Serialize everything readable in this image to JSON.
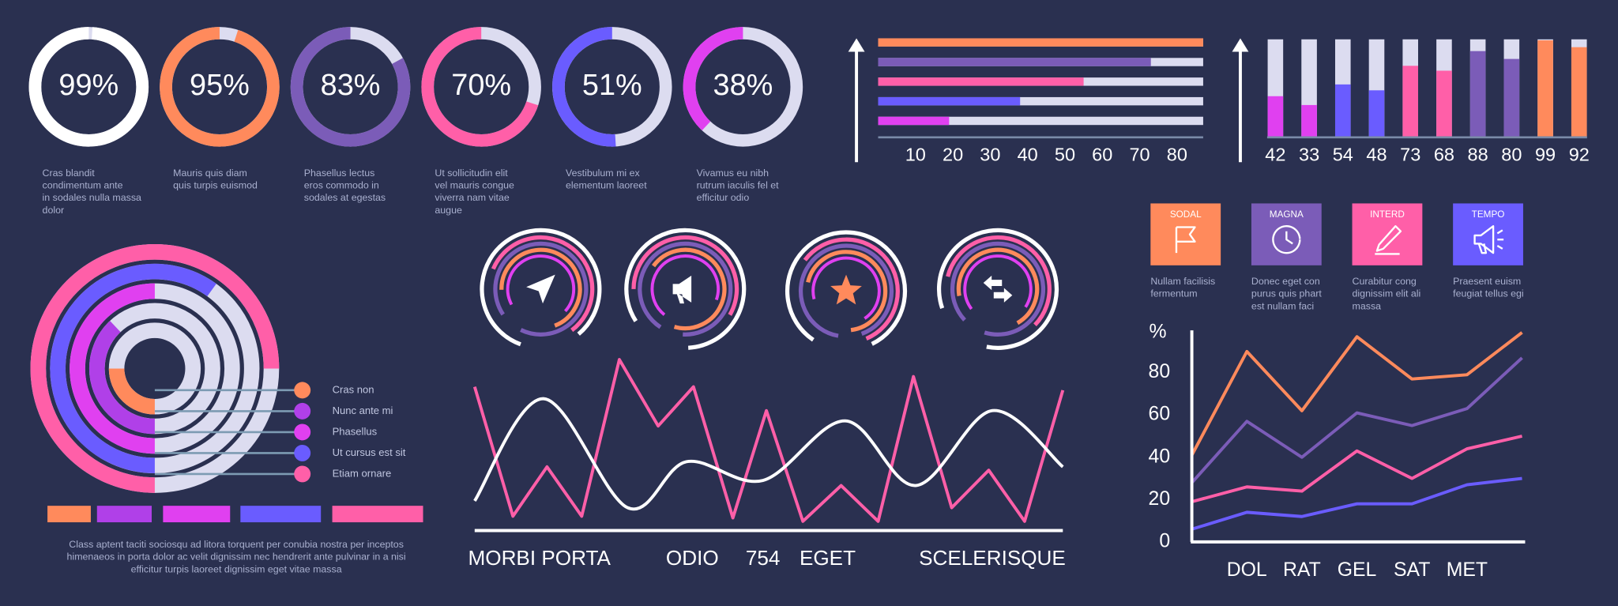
{
  "chart_data": [
    {
      "type": "donut",
      "values": [
        99,
        95,
        83,
        70,
        51,
        38
      ],
      "value_labels": [
        "99%",
        "95%",
        "83%",
        "70%",
        "51%",
        "38%"
      ],
      "colors": [
        "#ffffff",
        "#ff8a5c",
        "#7b5cb8",
        "#ff5fa8",
        "#6a5cff",
        "#e040f0"
      ],
      "track_color": "#dcdcf0",
      "captions": [
        [
          "Cras blandit",
          "condimentum ante",
          "in sodales nulla massa",
          "dolor"
        ],
        [
          "Mauris quis diam",
          "quis turpis euismod"
        ],
        [
          "Phasellus lectus",
          "eros commodo in",
          "sodales at egestas"
        ],
        [
          "Ut sollicitudin elit",
          "vel mauris congue",
          "viverra nam vitae",
          "augue"
        ],
        [
          "Vestibulum mi ex",
          "elementum  laoreet"
        ],
        [
          "Vivamus eu nibh",
          "rutrum iaculis fel et",
          "efficitur odio"
        ]
      ]
    },
    {
      "type": "bar",
      "orientation": "horizontal",
      "values": [
        87,
        73,
        55,
        38,
        19
      ],
      "colors": [
        "#ff8a5c",
        "#7b5cb8",
        "#ff5fa8",
        "#6a5cff",
        "#e040f0"
      ],
      "track_color": "#dcdcf0",
      "xlim": [
        0,
        87
      ],
      "xticks": [
        10,
        20,
        30,
        40,
        50,
        60,
        70,
        80
      ]
    },
    {
      "type": "bar",
      "orientation": "vertical",
      "values": [
        42,
        33,
        54,
        48,
        73,
        68,
        88,
        80,
        99,
        92
      ],
      "colors": [
        "#e040f0",
        "#e040f0",
        "#6a5cff",
        "#6a5cff",
        "#ff5fa8",
        "#ff5fa8",
        "#7b5cb8",
        "#7b5cb8",
        "#ff8a5c",
        "#ff8a5c"
      ],
      "track_color": "#dcdcf0",
      "ylim": [
        0,
        100
      ]
    },
    {
      "type": "radial",
      "categories": [
        "Cras non",
        "Nunc ante mi",
        "Phasellus",
        "Ut cursus est sit",
        "Etiam ornare"
      ],
      "values": [
        25,
        38,
        50,
        60,
        75
      ],
      "colors": [
        "#ff8a5c",
        "#b040e8",
        "#e040f0",
        "#6a5cff",
        "#ff5fa8"
      ],
      "track_color": "#dcdcf0",
      "caption": [
        "Class aptent taciti sociosqu ad litora torquent per conubia nostra per inceptos",
        "himenaeos in porta dolor ac velit dignissim nec hendrerit ante pulvinar in a nisi",
        "efficitur turpis laoreet dignissim eget vitae massa"
      ]
    },
    {
      "type": "line",
      "xlim": [
        0,
        100
      ],
      "ylim": [
        0,
        100
      ],
      "xticks": [
        {
          "value": 11,
          "label": "MORBI PORTA"
        },
        {
          "value": 37,
          "label": "ODIO"
        },
        {
          "value": 49,
          "label": "754"
        },
        {
          "value": 60,
          "label": "EGET"
        },
        {
          "value": 88,
          "label": "SCELERISQUE"
        }
      ],
      "series": [
        {
          "color": "#ff5fa8",
          "x": [
            0,
            6.5,
            12.3,
            18.2,
            24.6,
            31.2,
            37.2,
            43.9,
            49.6,
            55.8,
            62.3,
            68.6,
            74.6,
            81.1,
            87.4,
            93.5,
            100
          ],
          "values": [
            82,
            6,
            35,
            6,
            98,
            59,
            82,
            5,
            68,
            3,
            24,
            3,
            88,
            11,
            33,
            3,
            80
          ]
        },
        {
          "color": "#ffffff",
          "smooth": true,
          "x": [
            0,
            11.7,
            26,
            36,
            49,
            63,
            75,
            88,
            100
          ],
          "values": [
            15,
            75,
            11,
            38,
            27,
            62,
            24,
            68,
            35
          ]
        }
      ]
    },
    {
      "type": "line",
      "y_label": "%",
      "categories": [
        null,
        "DOL",
        "RAT",
        "GEL",
        "SAT",
        "MET",
        null
      ],
      "ylim": [
        0,
        100
      ],
      "yticks": [
        0,
        20,
        40,
        60,
        80
      ],
      "series": [
        {
          "color": "#ff8a5c",
          "values": [
            41,
            90,
            62,
            97,
            77,
            79,
            99
          ]
        },
        {
          "color": "#7b5cb8",
          "values": [
            28,
            57,
            40,
            61,
            55,
            63,
            87
          ]
        },
        {
          "color": "#ff5fa8",
          "values": [
            19,
            26,
            24,
            43,
            30,
            44,
            50
          ]
        },
        {
          "color": "#6a5cff",
          "values": [
            6,
            14,
            12,
            18,
            18,
            27,
            30
          ]
        }
      ]
    }
  ],
  "badges": [
    {
      "label": "SODAL",
      "color": "#ff8a5c",
      "caption": [
        "Nullam facilisis",
        "fermentum"
      ]
    },
    {
      "label": "MAGNA",
      "color": "#7b5cb8",
      "caption": [
        "Donec eget con",
        "purus quis phart",
        "est nullam faci"
      ]
    },
    {
      "label": "INTERD",
      "color": "#ff5fa8",
      "caption": [
        "Curabitur cong",
        "dignissim elit ali",
        "massa"
      ]
    },
    {
      "label": "TEMPO",
      "color": "#6a5cff",
      "caption": [
        "Praesent euism",
        "feugiat tellus egi"
      ]
    }
  ]
}
